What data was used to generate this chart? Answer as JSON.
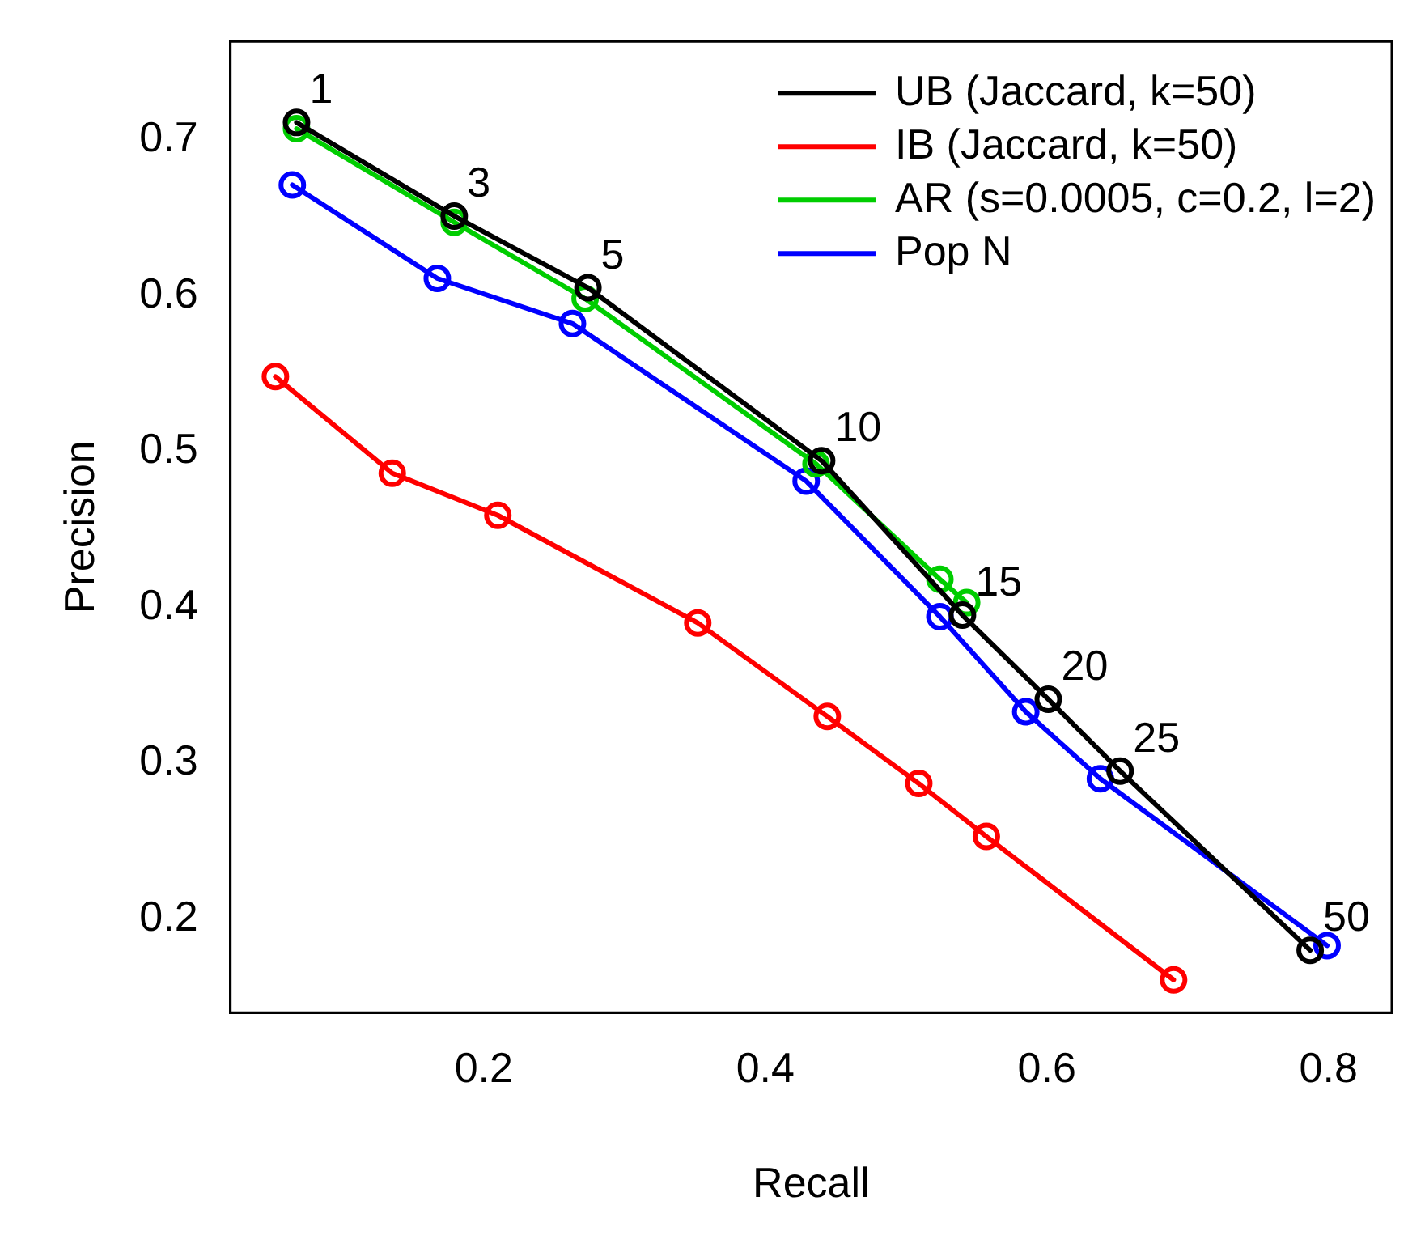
{
  "chart_data": {
    "type": "line",
    "xlabel": "Recall",
    "ylabel": "Precision",
    "xlim": [
      0.02,
      0.845
    ],
    "ylim": [
      0.14,
      0.763
    ],
    "xticks": [
      0.2,
      0.4,
      0.6,
      0.8
    ],
    "yticks": [
      0.2,
      0.3,
      0.4,
      0.5,
      0.6,
      0.7
    ],
    "grid": false,
    "legend": "top right",
    "marker": "circle",
    "line_style": "solid",
    "series": [
      {
        "name": "UB (Jaccard, k=50)",
        "color": "#000000",
        "x": [
          0.067,
          0.179,
          0.274,
          0.44,
          0.54,
          0.601,
          0.652,
          0.787
        ],
        "values": [
          0.711,
          0.651,
          0.605,
          0.494,
          0.395,
          0.341,
          0.295,
          0.18
        ]
      },
      {
        "name": "IB (Jaccard, k=50)",
        "color": "#ff0000",
        "x": [
          0.052,
          0.135,
          0.21,
          0.352,
          0.444,
          0.509,
          0.557,
          0.69
        ],
        "values": [
          0.548,
          0.486,
          0.459,
          0.39,
          0.33,
          0.287,
          0.253,
          0.161
        ]
      },
      {
        "name": "AR (s=0.0005, c=0.2, l=2)",
        "color": "#00cd00",
        "x": [
          0.067,
          0.179,
          0.272,
          0.436,
          0.524,
          0.543
        ],
        "values": [
          0.707,
          0.647,
          0.598,
          0.492,
          0.418,
          0.403
        ]
      },
      {
        "name": "Pop N",
        "color": "#0000ff",
        "x": [
          0.064,
          0.167,
          0.263,
          0.429,
          0.524,
          0.585,
          0.638,
          0.799
        ],
        "values": [
          0.671,
          0.611,
          0.582,
          0.481,
          0.394,
          0.333,
          0.29,
          0.183
        ]
      }
    ],
    "annotations": [
      {
        "text": "1",
        "x": 0.067,
        "y": 0.711
      },
      {
        "text": "3",
        "x": 0.179,
        "y": 0.651
      },
      {
        "text": "5",
        "x": 0.274,
        "y": 0.605
      },
      {
        "text": "10",
        "x": 0.44,
        "y": 0.494
      },
      {
        "text": "15",
        "x": 0.54,
        "y": 0.395
      },
      {
        "text": "20",
        "x": 0.601,
        "y": 0.341
      },
      {
        "text": "25",
        "x": 0.652,
        "y": 0.295
      },
      {
        "text": "50",
        "x": 0.787,
        "y": 0.18
      }
    ]
  }
}
